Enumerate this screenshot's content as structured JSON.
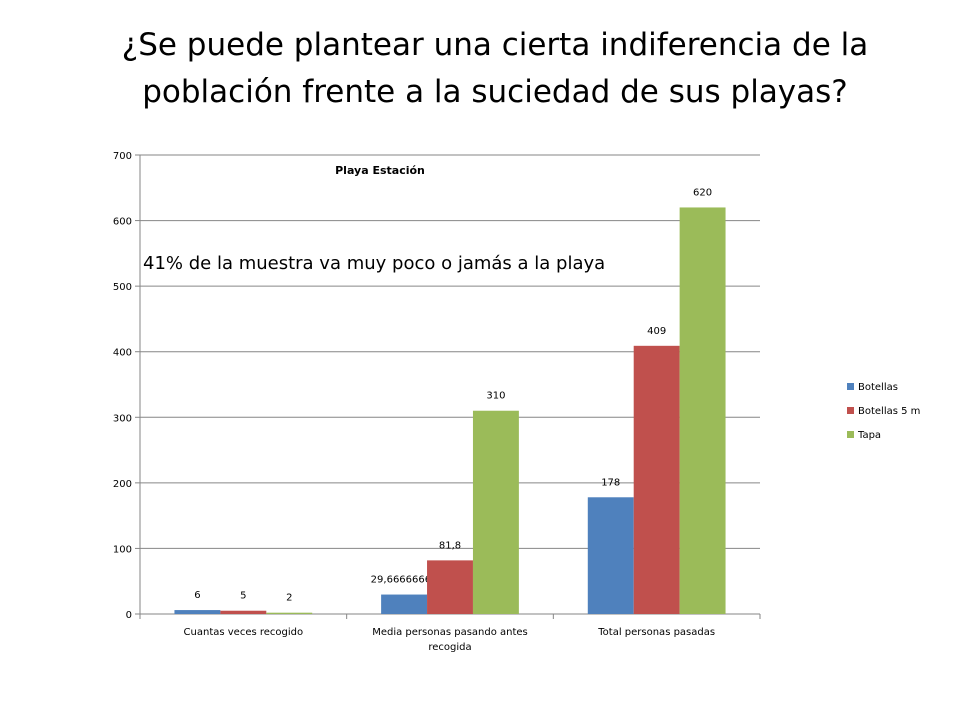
{
  "slide": {
    "title_line1": "¿Se puede plantear una cierta indiferencia de la",
    "title_line2": "población frente a la suciedad de sus playas?"
  },
  "chart_data": {
    "type": "bar",
    "title": "Playa Estación",
    "annotation": "41% de la muestra va muy poco o jamás a la playa",
    "categories": [
      [
        "Cuantas veces recogido"
      ],
      [
        "Media personas pasando antes",
        "recogida"
      ],
      [
        "Total personas pasadas"
      ]
    ],
    "series": [
      {
        "name": "Botellas",
        "color": "#4F81BD",
        "values": [
          6,
          29.66666667,
          178
        ],
        "labels": [
          "6",
          "29,66666667",
          "178"
        ]
      },
      {
        "name": "Botellas 5 m",
        "color": "#C0504D",
        "values": [
          5,
          81.8,
          409
        ],
        "labels": [
          "5",
          "81,8",
          "409"
        ]
      },
      {
        "name": "Tapa",
        "color": "#9BBB59",
        "values": [
          2,
          310,
          620
        ],
        "labels": [
          "2",
          "310",
          "620"
        ]
      }
    ],
    "ylim": [
      0,
      700
    ],
    "yticks": [
      0,
      100,
      200,
      300,
      400,
      500,
      600,
      700
    ],
    "grid": true,
    "legend": "right",
    "xlabel": "",
    "ylabel": ""
  }
}
